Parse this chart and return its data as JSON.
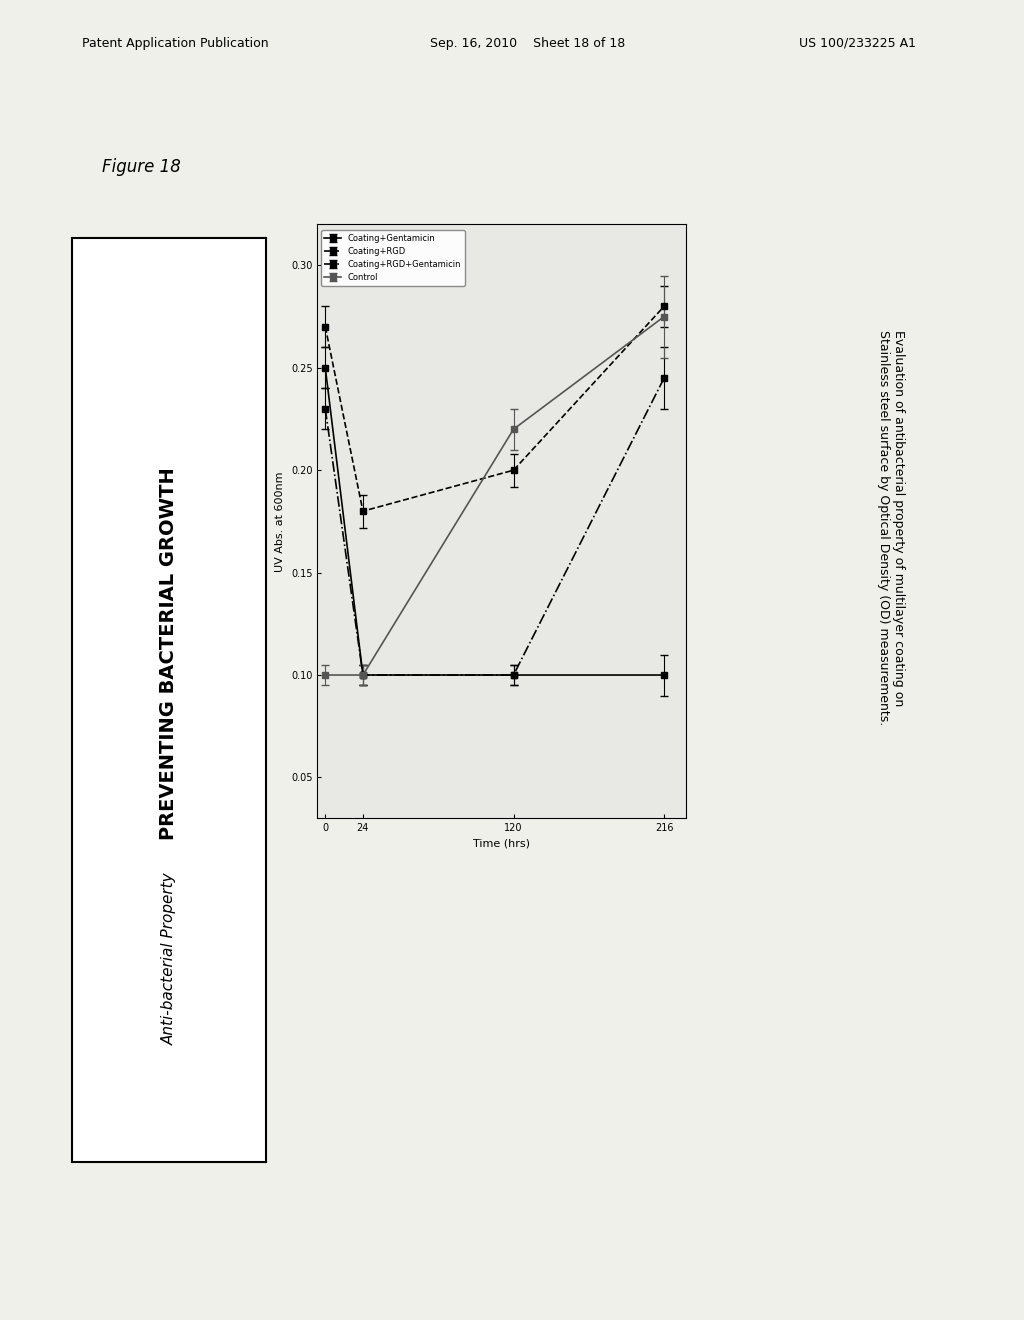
{
  "page_background": "#f5f5f0",
  "header_text": "Patent Application Publication",
  "header_date": "Sep. 16, 2010",
  "header_sheet": "Sheet 18 of 18",
  "header_patent": "US 100/233225 A1",
  "figure_label": "Figure 18",
  "box_title1": "PREVENTING BACTERIAL GROWTH",
  "box_title2": "Anti-bacterial Property",
  "caption": "Evaluation of antibacterial property of multilayer coating on\nStainless steel surface by Optical Density (OD) measurements.",
  "xlabel": "Time (hrs)",
  "ylabel": "UV Abs. at 600nm",
  "x_ticks": [
    0,
    24,
    120,
    216
  ],
  "y_ticks": [
    0.05,
    0.1,
    0.15,
    0.2,
    0.25,
    0.3
  ],
  "ylim": [
    0.03,
    0.32
  ],
  "xlim": [
    -5,
    230
  ],
  "series": [
    {
      "label": "Coating+Gentamicin",
      "linestyle": "-",
      "color": "#000000",
      "marker": "s",
      "x": [
        0,
        24,
        120,
        216
      ],
      "y": [
        0.25,
        0.1,
        0.1,
        0.1
      ],
      "yerr": [
        0.01,
        0.005,
        0.005,
        0.01
      ]
    },
    {
      "label": "Coating+RGD",
      "linestyle": "--",
      "color": "#000000",
      "marker": "s",
      "x": [
        0,
        24,
        120,
        216
      ],
      "y": [
        0.27,
        0.18,
        0.2,
        0.28
      ],
      "yerr": [
        0.01,
        0.008,
        0.008,
        0.01
      ]
    },
    {
      "label": "Coating+RGD+Gentamicin",
      "linestyle": "-.",
      "color": "#000000",
      "marker": "s",
      "x": [
        0,
        24,
        120,
        216
      ],
      "y": [
        0.23,
        0.1,
        0.1,
        0.245
      ],
      "yerr": [
        0.01,
        0.005,
        0.005,
        0.015
      ]
    },
    {
      "label": "Control",
      "linestyle": "-",
      "color": "#555555",
      "marker": "s",
      "x": [
        0,
        24,
        120,
        216
      ],
      "y": [
        0.1,
        0.1,
        0.22,
        0.275
      ],
      "yerr": [
        0.005,
        0.005,
        0.01,
        0.02
      ]
    }
  ]
}
